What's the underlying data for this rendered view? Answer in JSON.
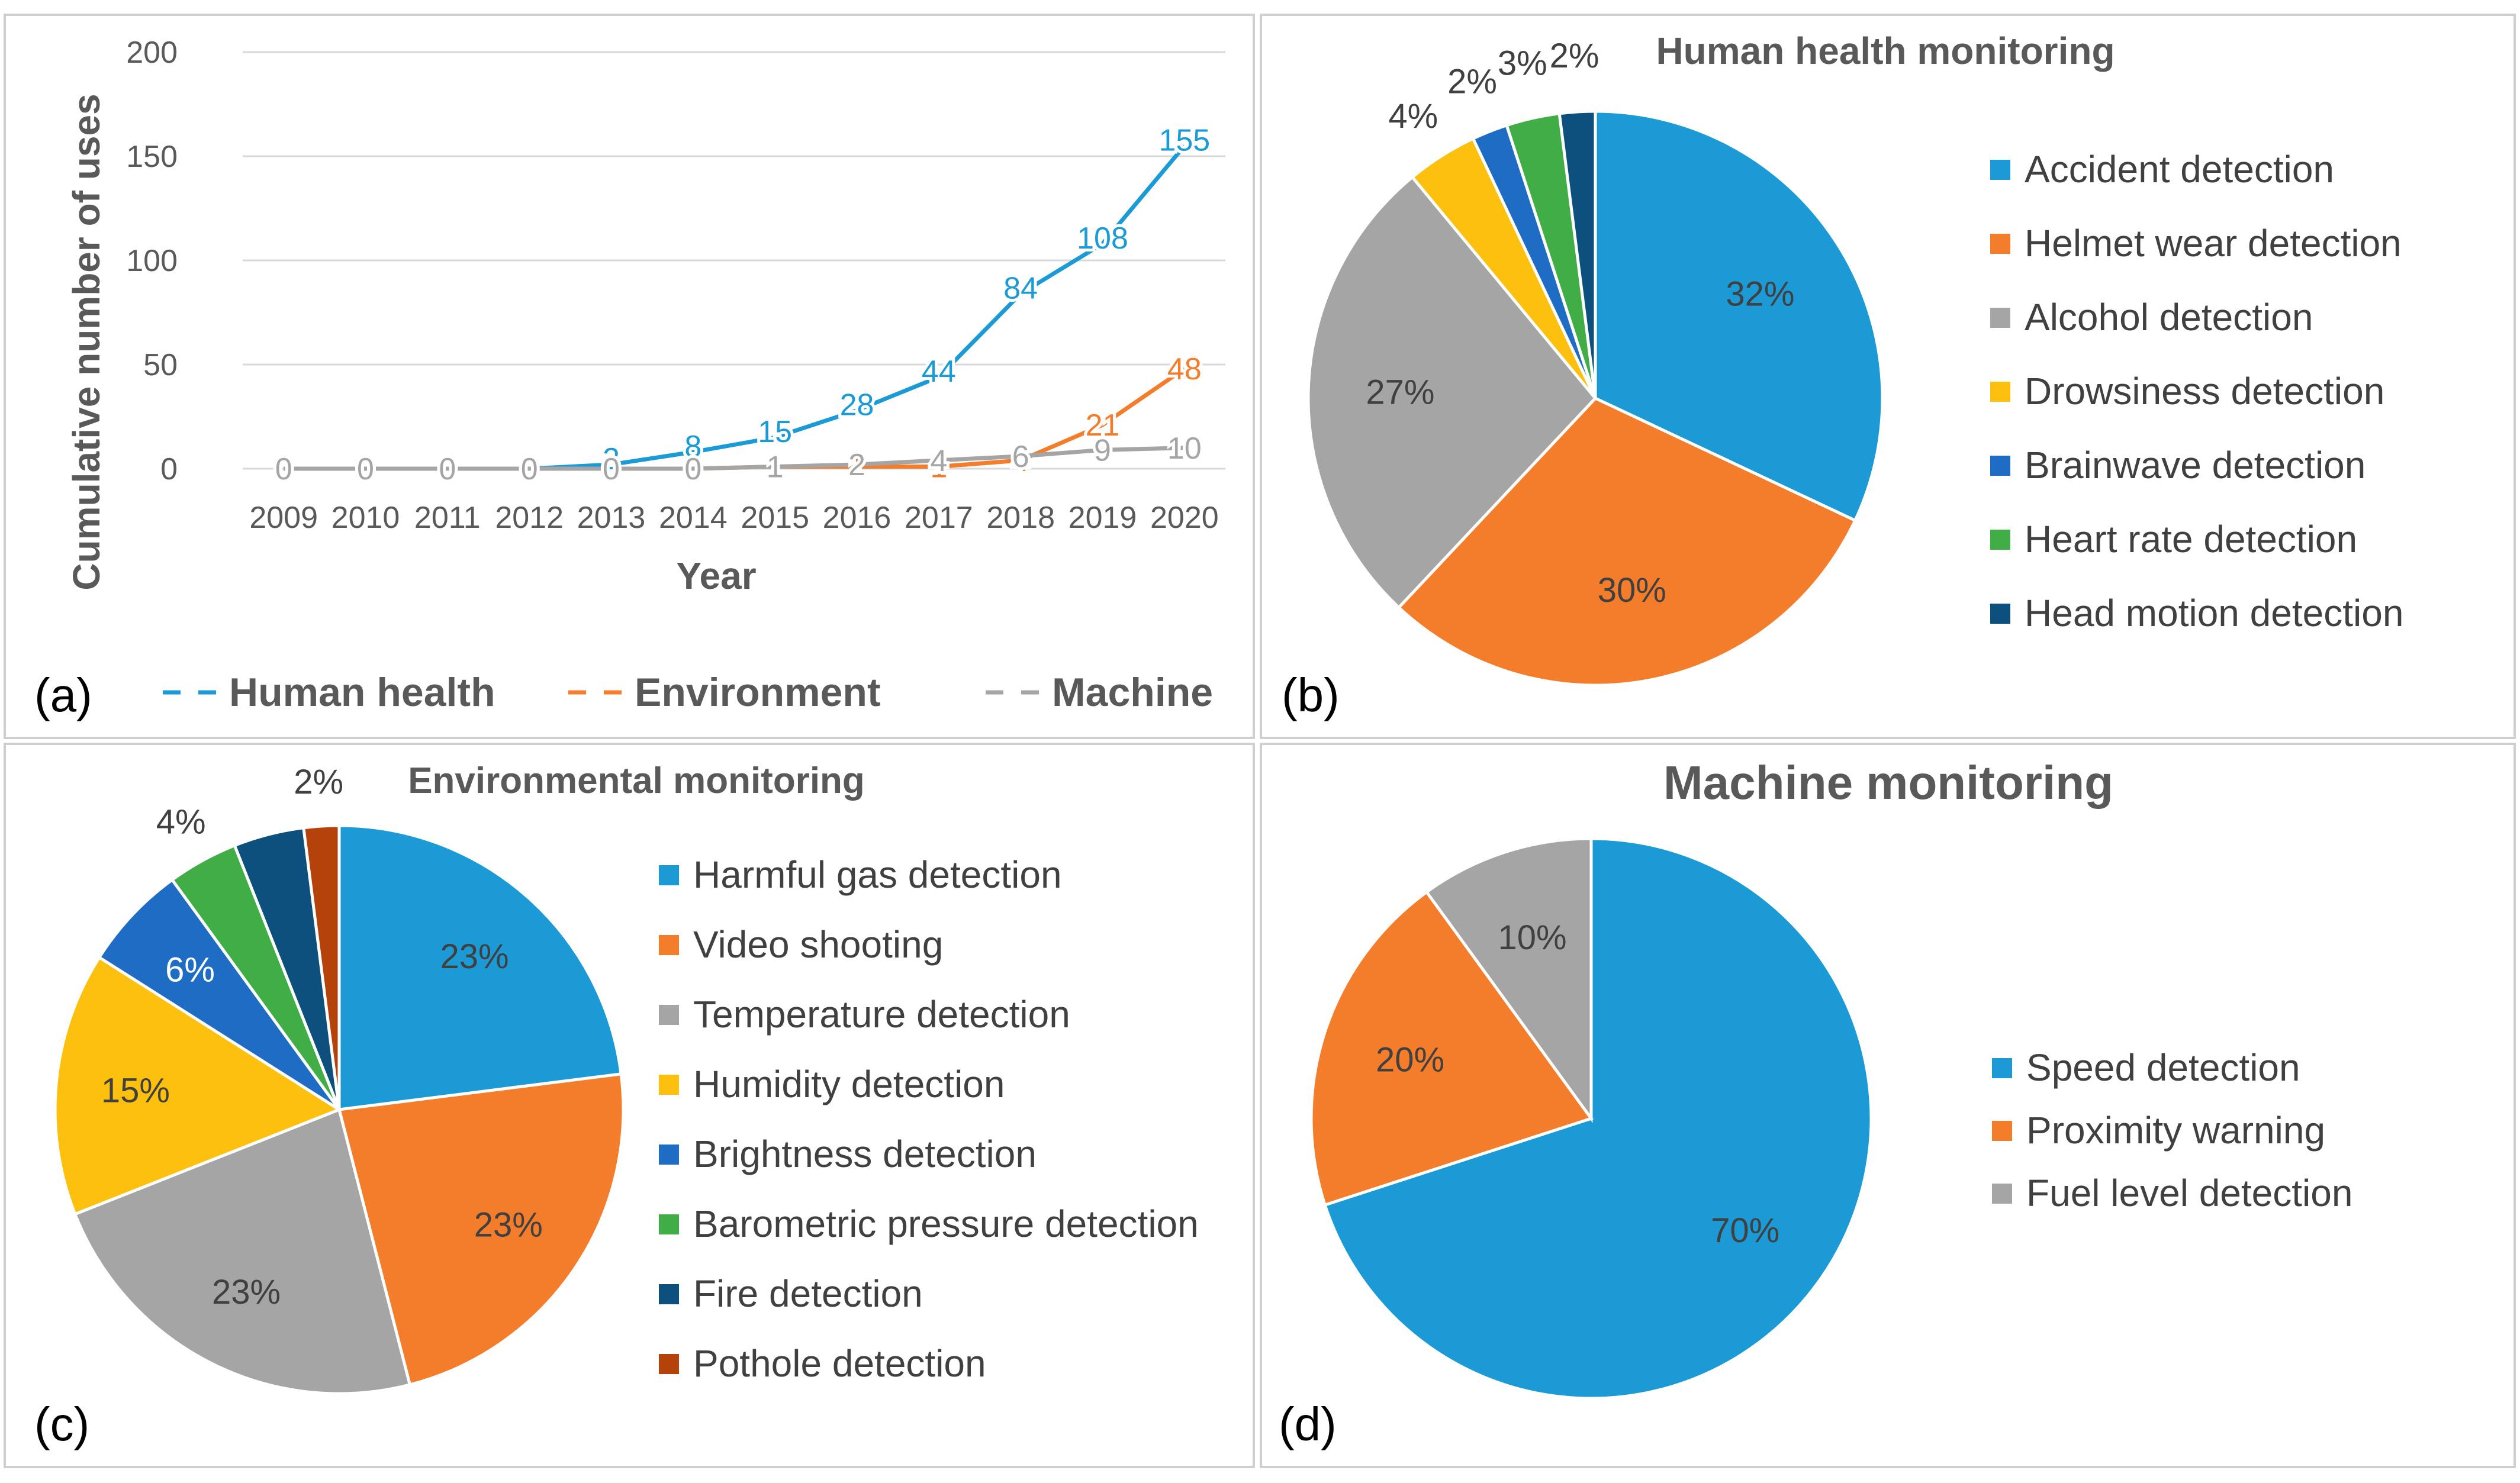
{
  "chart_data": [
    {
      "type": "line",
      "panel_label": "(a)",
      "title": "",
      "xlabel": "Year",
      "ylabel": "Cumulative number of uses",
      "ylim": [
        0,
        200
      ],
      "yticks": [
        "0",
        "50",
        "100",
        "150",
        "200"
      ],
      "categories": [
        "2009",
        "2010",
        "2011",
        "2012",
        "2013",
        "2014",
        "2015",
        "2016",
        "2017",
        "2018",
        "2019",
        "2020"
      ],
      "grid": true,
      "legend_position": "bottom",
      "series": [
        {
          "name": "Human health",
          "color": "#1b9ad6",
          "values": [
            0,
            0,
            0,
            0,
            2,
            8,
            15,
            28,
            44,
            84,
            108,
            155
          ]
        },
        {
          "name": "Environment",
          "color": "#f47d2b",
          "values": [
            0,
            0,
            0,
            0,
            0,
            0,
            1,
            1,
            1,
            4,
            21,
            48
          ]
        },
        {
          "name": "Machine",
          "color": "#a5a5a5",
          "values": [
            0,
            0,
            0,
            0,
            0,
            0,
            1,
            2,
            4,
            6,
            9,
            10
          ]
        }
      ]
    },
    {
      "type": "pie",
      "panel_label": "(b)",
      "title": "Human health monitoring",
      "legend_position": "right",
      "slices": [
        {
          "label": "Accident detection",
          "value": 32,
          "pct": "32%",
          "color": "#1b9ad6"
        },
        {
          "label": "Helmet wear detection",
          "value": 30,
          "pct": "30%",
          "color": "#f47d2b"
        },
        {
          "label": "Alcohol detection",
          "value": 27,
          "pct": "27%",
          "color": "#a5a5a5"
        },
        {
          "label": "Drowsiness detection",
          "value": 4,
          "pct": "4%",
          "color": "#fec00f"
        },
        {
          "label": "Brainwave detection",
          "value": 2,
          "pct": "2%",
          "color": "#1f6cc4"
        },
        {
          "label": "Heart rate detection",
          "value": 3,
          "pct": "3%",
          "color": "#40ad47"
        },
        {
          "label": "Head motion detection",
          "value": 2,
          "pct": "2%",
          "color": "#0d4f7d"
        }
      ]
    },
    {
      "type": "pie",
      "panel_label": "(c)",
      "title": "Environmental monitoring",
      "legend_position": "right",
      "slices": [
        {
          "label": "Harmful gas detection",
          "value": 23,
          "pct": "23%",
          "color": "#1b9ad6"
        },
        {
          "label": "Video shooting",
          "value": 23,
          "pct": "23%",
          "color": "#f47d2b"
        },
        {
          "label": "Temperature detection",
          "value": 23,
          "pct": "23%",
          "color": "#a5a5a5"
        },
        {
          "label": "Humidity detection",
          "value": 15,
          "pct": "15%",
          "color": "#fec00f"
        },
        {
          "label": "Brightness detection",
          "value": 6,
          "pct": "6%",
          "color": "#1f6cc4"
        },
        {
          "label": "Barometric pressure detection",
          "value": 4,
          "pct": "4%",
          "color": "#40ad47"
        },
        {
          "label": "Fire detection",
          "value": 4,
          "pct": "4%",
          "color": "#0d4f7d"
        },
        {
          "label": "Pothole detection",
          "value": 2,
          "pct": "2%",
          "color": "#b5410b"
        }
      ]
    },
    {
      "type": "pie",
      "panel_label": "(d)",
      "title": "Machine monitoring",
      "legend_position": "right",
      "slices": [
        {
          "label": "Speed detection",
          "value": 70,
          "pct": "70%",
          "color": "#1b9ad6"
        },
        {
          "label": "Proximity warning",
          "value": 20,
          "pct": "20%",
          "color": "#f47d2b"
        },
        {
          "label": "Fuel level detection",
          "value": 10,
          "pct": "10%",
          "color": "#a5a5a5"
        }
      ]
    }
  ]
}
